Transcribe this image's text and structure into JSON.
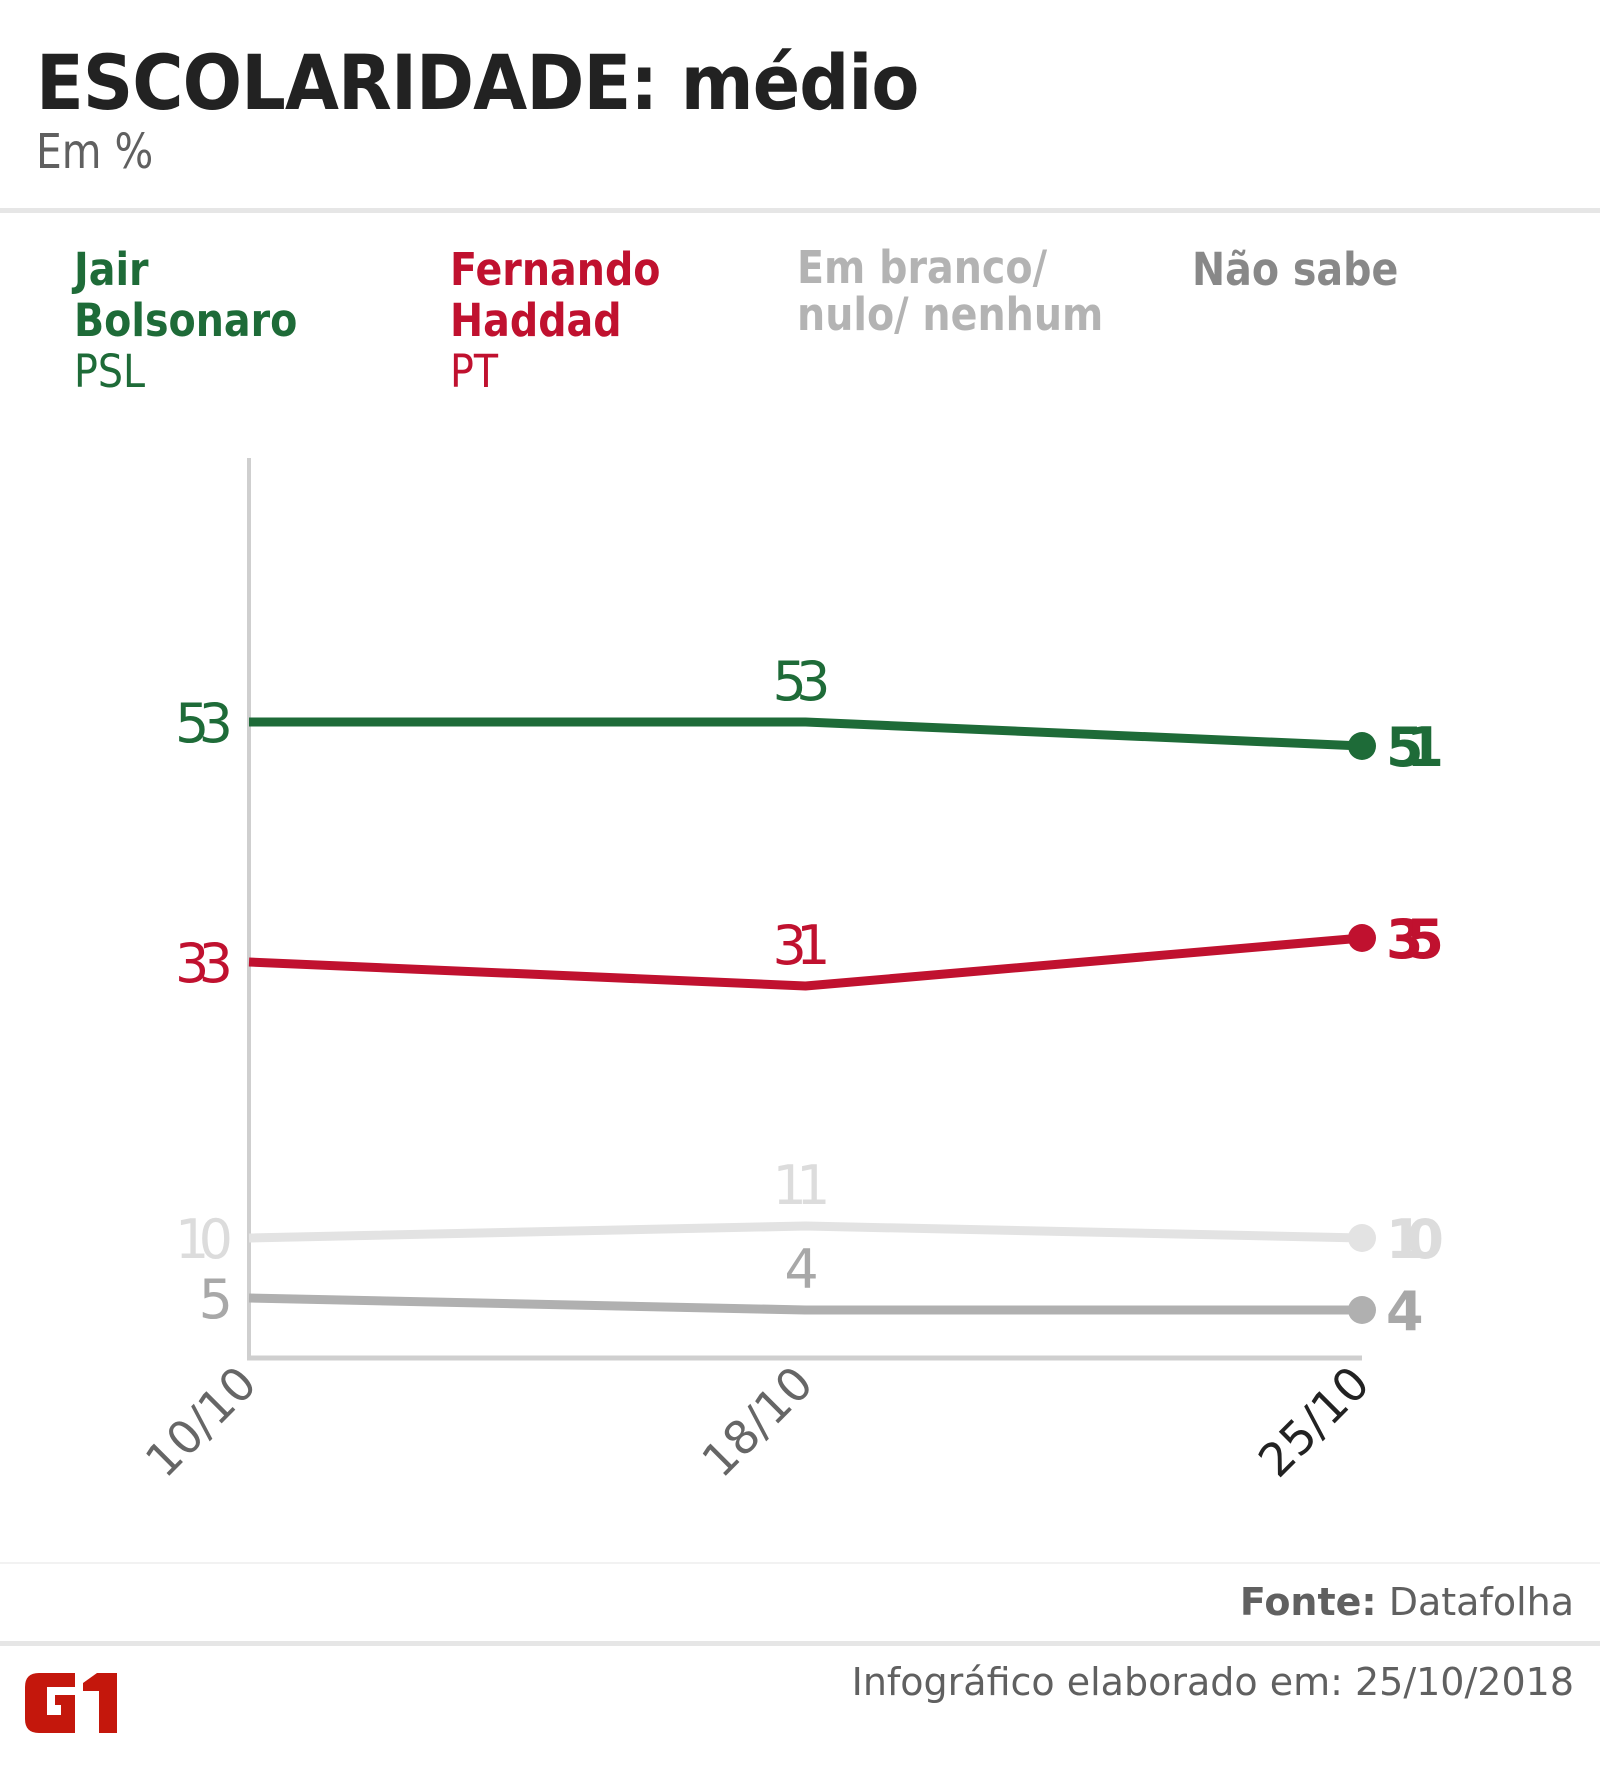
{
  "header": {
    "title": "ESCOLARIDADE: médio",
    "subtitle": "Em %"
  },
  "legend": [
    {
      "name_line1": "Jair",
      "name_line2": "Bolsonaro",
      "party": "PSL",
      "color": "#1e6b38"
    },
    {
      "name_line1": "Fernando",
      "name_line2": "Haddad",
      "party": "PT",
      "color": "#c0112f"
    },
    {
      "name_line1": "Em branco/",
      "name_line2": "nulo/ nenhum",
      "party": "",
      "color": "#b3b3b3"
    },
    {
      "name_line1": "Não sabe",
      "name_line2": "",
      "party": "",
      "color": "#888888"
    }
  ],
  "chart_data": {
    "type": "line",
    "title": "ESCOLARIDADE: médio",
    "subtitle": "Em %",
    "x": [
      "10/10",
      "18/10",
      "25/10"
    ],
    "xlabel": "",
    "ylabel": "",
    "ylim": [
      0,
      75
    ],
    "grid": false,
    "legend_placement": "top",
    "series": [
      {
        "name": "Jair Bolsonaro (PSL)",
        "values": [
          53,
          53,
          51
        ],
        "color": "#1e6b38",
        "line_color": "#1e6b38"
      },
      {
        "name": "Fernando Haddad (PT)",
        "values": [
          33,
          31,
          35
        ],
        "color": "#c0112f",
        "line_color": "#c0112f"
      },
      {
        "name": "Em branco/ nulo/ nenhum",
        "values": [
          10,
          11,
          10
        ],
        "color": "#dcdcdc",
        "line_color": "#e3e3e3"
      },
      {
        "name": "Não sabe",
        "values": [
          5,
          4,
          4
        ],
        "color": "#a8a8a8",
        "line_color": "#b0b0b0"
      }
    ],
    "x_label_colors": [
      "#666666",
      "#666666",
      "#222222"
    ]
  },
  "footer": {
    "source_label": "Fonte:",
    "source_value": " Datafolha",
    "credit": "Infográfico elaborado em: 25/10/2018",
    "logo_text": "G1",
    "logo_color": "#c4170c"
  }
}
